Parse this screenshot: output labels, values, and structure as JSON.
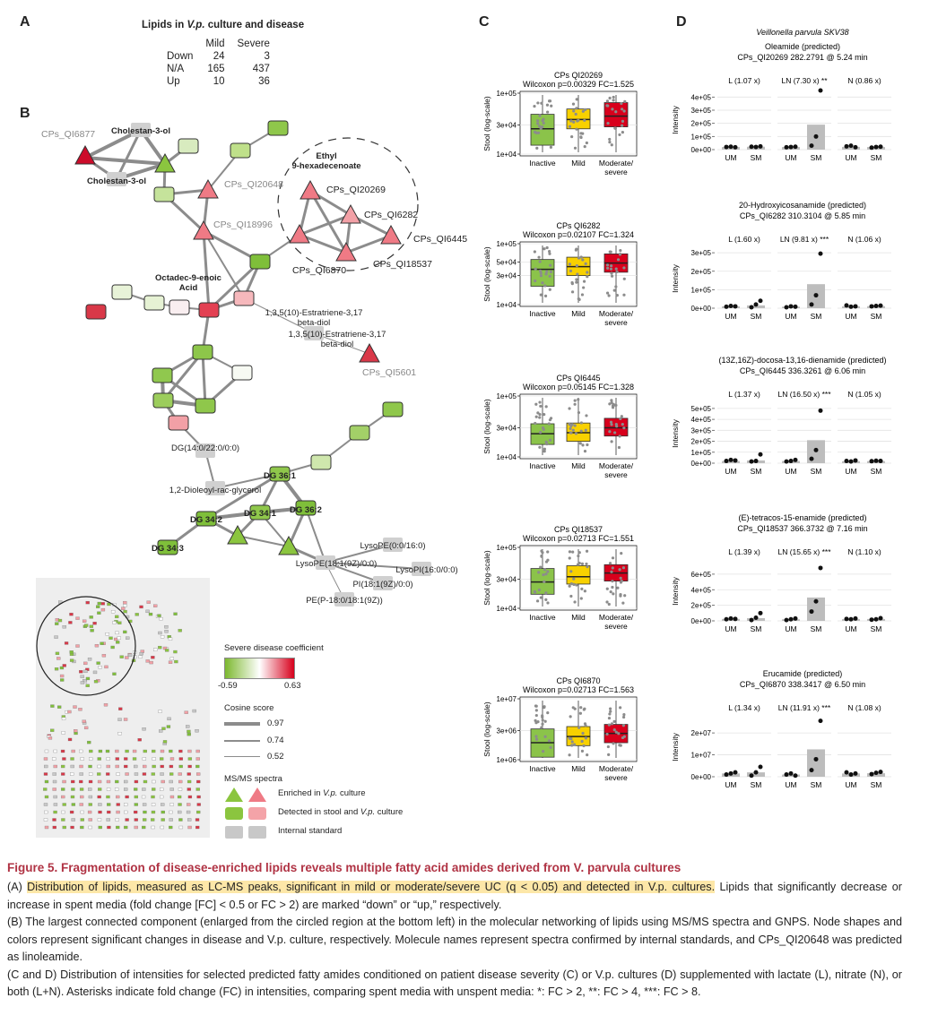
{
  "panels": {
    "a": "A",
    "b": "B",
    "c": "C",
    "d": "D"
  },
  "panel_a": {
    "title_pre": "Lipids in ",
    "title_em": "V.p.",
    "title_post": " culture and disease",
    "headers": [
      "Mild",
      "Severe"
    ],
    "rows": [
      {
        "label": "Down",
        "mild": "24",
        "severe": "3"
      },
      {
        "label": "N/A",
        "mild": "165",
        "severe": "437"
      },
      {
        "label": "Up",
        "mild": "10",
        "severe": "36"
      }
    ]
  },
  "network": {
    "labels": {
      "cholestan1": "Cholestan-3-ol",
      "cholestan2": "Cholestan-3-ol",
      "qi6877": "CPs_QI6877",
      "qi20648": "CPs_QI20648",
      "qi18996": "CPs_QI18996",
      "ethyl": "Ethyl",
      "ethyl2": "9-hexadecenoate",
      "qi20269": "CPs_QI20269",
      "qi6282": "CPs_QI6282",
      "qi6445": "CPs_QI6445",
      "qi6870": "CPs_QI6870",
      "qi18537": "CPs_QI18537",
      "octadec1": "Octadec-9-enoic",
      "octadec2": "Acid",
      "estra1a": "1,3,5(10)-Estratriene-3,17",
      "estra1b": "beta-diol",
      "estra2a": "1,3,5(10)-Estratriene-3,17",
      "estra2b": "beta-diol",
      "qi5601": "CPs_QI5601",
      "dg14": "DG(14:0/22:0/0:0)",
      "dioleoyl": "1,2-Dioleoyl-rac-glycerol",
      "dg361": "DG 36:1",
      "dg342": "DG 34:2",
      "dg341": "DG 34:1",
      "dg362": "DG 36:2",
      "dg343": "DG 34:3",
      "lysope": "LysoPE(0:0/16:0)",
      "lysope18": "LysoPE(18:1(9Z)/0:0)",
      "lysopi": "LysoPI(16:0/0:0)",
      "pi18": "PI(18:1(9Z)/0:0)",
      "pe": "PE(P-18:0/18:1(9Z))"
    }
  },
  "legend": {
    "coef_title": "Severe disease coefficient",
    "coef_min": "-0.59",
    "coef_max": "0.63",
    "cos_title": "Cosine score",
    "cos_vals": [
      "0.97",
      "0.74",
      "0.52"
    ],
    "msms_title": "MS/MS spectra",
    "enriched_pre": "Enriched in ",
    "enriched_em": "V.p.",
    "enriched_post": " culture",
    "detected_pre": "Detected in stool and ",
    "detected_em": "V.p.",
    "detected_post": " culture",
    "internal": "Internal standard",
    "colors": {
      "low": "#7cb82f",
      "mid": "#ffffff",
      "high": "#d7001c",
      "green": "#8bc53f",
      "pink": "#f4a3a8",
      "gray": "#c8c8c8"
    }
  },
  "chart_data": [
    {
      "type": "box",
      "title": "CPs QI20269",
      "subtitle": "Wilcoxon p=0.00329 FC=1.525",
      "ylabel": "Stool (log-scale)",
      "yticks": [
        "1e+04",
        "3e+04",
        "1e+05"
      ],
      "categories": [
        "Inactive",
        "Mild",
        "Moderate/ severe"
      ],
      "medians": [
        26000,
        37000,
        42000
      ],
      "q1": [
        14000,
        26000,
        28000
      ],
      "q3": [
        45000,
        55000,
        70000
      ]
    },
    {
      "type": "box",
      "title": "CPs QI6282",
      "subtitle": "Wilcoxon p=0.02107 FC=1.324",
      "ylabel": "Stool (log-scale)",
      "yticks": [
        "1e+04",
        "3e+04",
        "5e+04",
        "1e+05"
      ],
      "categories": [
        "Inactive",
        "Mild",
        "Moderate/ severe"
      ],
      "medians": [
        38000,
        42000,
        48000
      ],
      "q1": [
        20000,
        30000,
        34000
      ],
      "q3": [
        55000,
        60000,
        68000
      ]
    },
    {
      "type": "box",
      "title": "CPs QI6445",
      "subtitle": "Wilcoxon p=0.05145 FC=1.328",
      "ylabel": "Stool (log-scale)",
      "yticks": [
        "1e+04",
        "3e+04",
        "1e+05"
      ],
      "categories": [
        "Inactive",
        "Mild",
        "Moderate/ severe"
      ],
      "medians": [
        24000,
        25000,
        30000
      ],
      "q1": [
        16000,
        18000,
        22000
      ],
      "q3": [
        35000,
        36000,
        43000
      ]
    },
    {
      "type": "box",
      "title": "CPs QI18537",
      "subtitle": "Wilcoxon p=0.02713 FC=1.551",
      "ylabel": "Stool (log-scale)",
      "yticks": [
        "1e+04",
        "3e+04",
        "1e+05"
      ],
      "categories": [
        "Inactive",
        "Mild",
        "Moderate/ severe"
      ],
      "medians": [
        27000,
        33000,
        38000
      ],
      "q1": [
        17000,
        25000,
        28000
      ],
      "q3": [
        45000,
        50000,
        52000
      ]
    },
    {
      "type": "box",
      "title": "CPs QI6870",
      "subtitle": "Wilcoxon p=0.02713 FC=1.563",
      "ylabel": "Stool (log-scale)",
      "yticks": [
        "1e+06",
        "3e+06",
        "1e+07"
      ],
      "categories": [
        "Inactive",
        "Mild",
        "Moderate/ severe"
      ],
      "medians": [
        1900000,
        2400000,
        2700000
      ],
      "q1": [
        1100000,
        1700000,
        1900000
      ],
      "q3": [
        3200000,
        3500000,
        3800000
      ]
    },
    {
      "type": "bar",
      "header": "Veillonella parvula SKV38",
      "title": "Oleamide (predicted)",
      "info": "CPs_QI20269   282.2791 @ 5.24 min",
      "ylabel": "Intensity",
      "facets": [
        "L (1.07 x)",
        "LN (7.30 x) **",
        "N (0.86 x)"
      ],
      "categories": [
        "UM",
        "SM"
      ],
      "yticks": [
        "0e+00",
        "1e+05",
        "2e+05",
        "3e+05",
        "4e+05"
      ],
      "ymax": 450000,
      "bars": [
        [
          20000,
          22000
        ],
        [
          20000,
          190000
        ],
        [
          21000,
          20000
        ]
      ],
      "points": [
        [
          [
            20000,
            22000,
            18000
          ],
          [
            22000,
            20000,
            25000
          ]
        ],
        [
          [
            18000,
            20000,
            22000
          ],
          [
            30000,
            100000,
            450000
          ]
        ],
        [
          [
            25000,
            30000,
            18000
          ],
          [
            15000,
            20000,
            22000
          ]
        ]
      ]
    },
    {
      "type": "bar",
      "title": "20-Hydroxyicosanamide (predicted)",
      "info": "CPs_QI6282   310.3104 @ 5.85 min",
      "ylabel": "Intensity",
      "facets": [
        "L (1.60 x)",
        "LN (9.81 x) ***",
        "N (1.06 x)"
      ],
      "categories": [
        "UM",
        "SM"
      ],
      "yticks": [
        "0e+00",
        "1e+05",
        "2e+05",
        "3e+05"
      ],
      "ymax": 320000,
      "bars": [
        [
          10000,
          15000
        ],
        [
          8000,
          130000
        ],
        [
          10000,
          11000
        ]
      ],
      "points": [
        [
          [
            8000,
            12000,
            10000
          ],
          [
            5000,
            20000,
            40000
          ]
        ],
        [
          [
            5000,
            10000,
            8000
          ],
          [
            20000,
            70000,
            295000
          ]
        ],
        [
          [
            15000,
            8000,
            10000
          ],
          [
            10000,
            12000,
            14000
          ]
        ]
      ]
    },
    {
      "type": "bar",
      "title": "(13Z,16Z)-docosa-13,16-dienamide (predicted)",
      "info": "CPs_QI6445   336.3261 @ 6.06 min",
      "ylabel": "Intensity",
      "facets": [
        "L (1.37 x)",
        "LN (16.50 x) ***",
        "N (1.05 x)"
      ],
      "categories": [
        "UM",
        "SM"
      ],
      "yticks": [
        "0e+00",
        "1e+05",
        "2e+05",
        "3e+05",
        "4e+05",
        "5e+05"
      ],
      "ymax": 540000,
      "bars": [
        [
          20000,
          25000
        ],
        [
          20000,
          210000
        ],
        [
          18000,
          19000
        ]
      ],
      "points": [
        [
          [
            20000,
            30000,
            25000
          ],
          [
            15000,
            20000,
            80000
          ]
        ],
        [
          [
            15000,
            20000,
            30000
          ],
          [
            40000,
            120000,
            480000
          ]
        ],
        [
          [
            20000,
            15000,
            25000
          ],
          [
            18000,
            22000,
            20000
          ]
        ]
      ]
    },
    {
      "type": "bar",
      "title": "(E)-tetracos-15-enamide (predicted)",
      "info": "CPs_QI18537   366.3732 @ 7.16 min",
      "ylabel": "Intensity",
      "facets": [
        "L (1.39 x)",
        "LN (15.65 x) ***",
        "N (1.10 x)"
      ],
      "categories": [
        "UM",
        "SM"
      ],
      "yticks": [
        "0e+00",
        "2e+05",
        "4e+05",
        "6e+05"
      ],
      "ymax": 760000,
      "bars": [
        [
          25000,
          35000
        ],
        [
          20000,
          300000
        ],
        [
          22000,
          24000
        ]
      ],
      "points": [
        [
          [
            20000,
            30000,
            25000
          ],
          [
            10000,
            40000,
            100000
          ]
        ],
        [
          [
            10000,
            20000,
            30000
          ],
          [
            120000,
            250000,
            680000
          ]
        ],
        [
          [
            25000,
            20000,
            30000
          ],
          [
            15000,
            20000,
            35000
          ]
        ]
      ]
    },
    {
      "type": "bar",
      "title": "Erucamide (predicted)",
      "info": "CPs_QI6870   338.3417 @ 6.50 min",
      "ylabel": "Intensity",
      "facets": [
        "L (1.34 x)",
        "LN (11.91 x) ***",
        "N (1.08 x)"
      ],
      "categories": [
        "UM",
        "SM"
      ],
      "yticks": [
        "0e+00",
        "1e+07",
        "2e+07"
      ],
      "ymax": 27000000,
      "bars": [
        [
          1500000,
          2000000
        ],
        [
          1000000,
          12500000
        ],
        [
          1500000,
          1600000
        ]
      ],
      "points": [
        [
          [
            1000000,
            1500000,
            2000000
          ],
          [
            500000,
            2000000,
            4500000
          ]
        ],
        [
          [
            1000000,
            1500000,
            500000
          ],
          [
            3000000,
            8000000,
            25500000
          ]
        ],
        [
          [
            2000000,
            1000000,
            1500000
          ],
          [
            1200000,
            1800000,
            2200000
          ]
        ]
      ]
    }
  ],
  "caption": {
    "title": "Figure 5.  Fragmentation of disease-enriched lipids reveals multiple fatty acid amides derived from V. parvula cultures",
    "a_pre": "(A) ",
    "a_hl": "Distribution of lipids, measured as LC-MS peaks, significant in mild or moderate/severe UC (q < 0.05) and detected in V.p. cultures.",
    "a_post": " Lipids that significantly decrease or increase in spent media (fold change [FC] < 0.5 or FC > 2) are marked “down” or “up,” respectively.",
    "b": "(B) The largest connected component (enlarged from the circled region at the bottom left) in the molecular networking of lipids using MS/MS spectra and GNPS. Node shapes and colors represent significant changes in disease and V.p. culture, respectively. Molecule names represent spectra confirmed by internal standards, and CPs_QI20648 was predicted as linoleamide.",
    "cd": "(C and D) Distribution of intensities for selected predicted fatty amides conditioned on patient disease severity (C) or V.p. cultures (D) supplemented with lactate (L), nitrate (N), or both (L+N). Asterisks indicate fold change (FC) in intensities, comparing spent media with unspent media: *: FC > 2, **: FC > 4, ***: FC > 8."
  }
}
